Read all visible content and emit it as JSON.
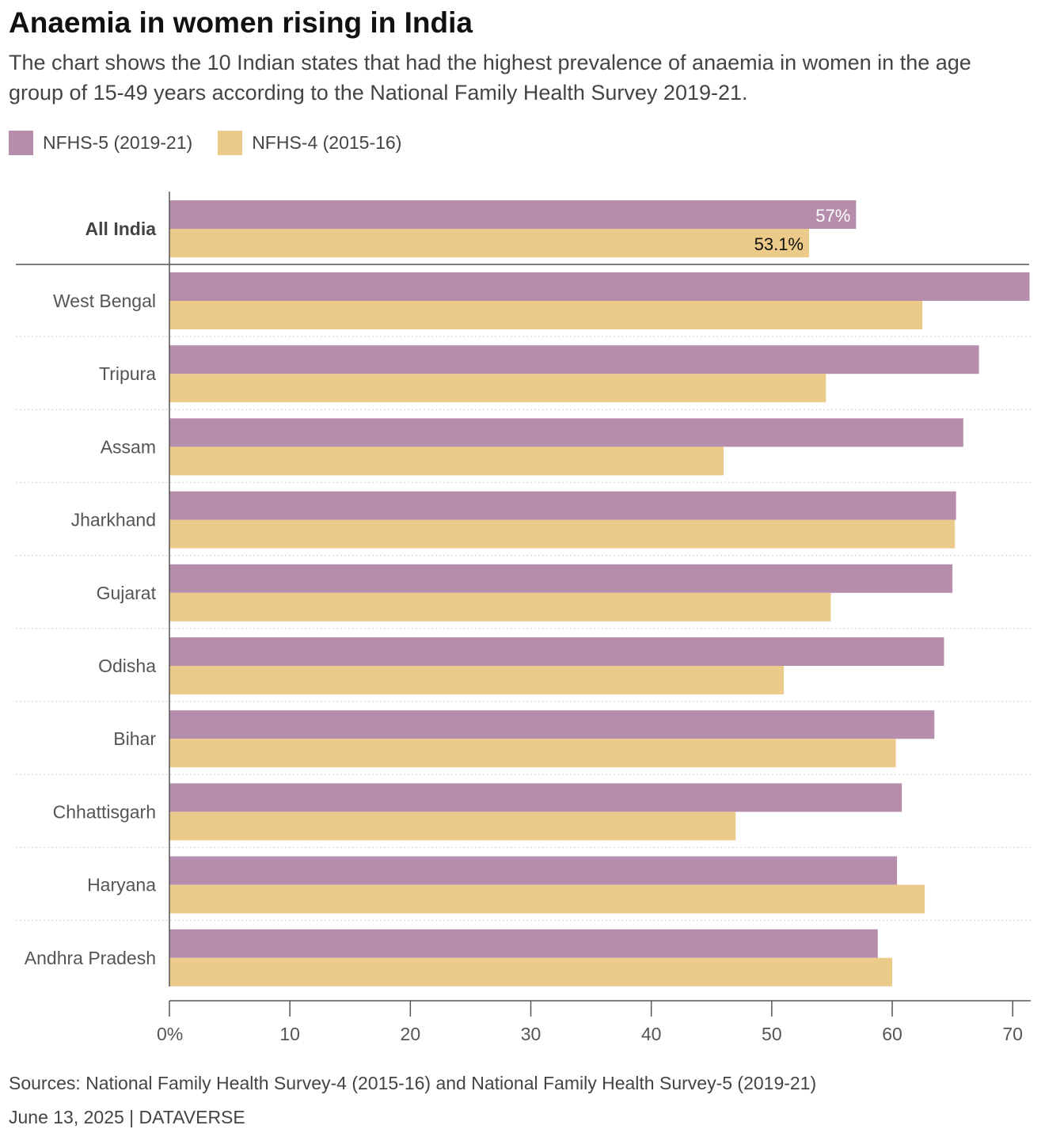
{
  "title": "Anaemia in women rising in India",
  "subtitle": "The chart shows the 10 Indian states that had the highest prevalence of anaemia in women in the age group of 15-49 years according to the National Family Health Survey 2019-21.",
  "legend": [
    {
      "label": "NFHS-5 (2019-21)",
      "color": "#b68dad"
    },
    {
      "label": "NFHS-4 (2015-16)",
      "color": "#ecca8a"
    }
  ],
  "chart_data": {
    "type": "bar",
    "orientation": "horizontal",
    "categories": [
      "All India",
      "West Bengal",
      "Tripura",
      "Assam",
      "Jharkhand",
      "Gujarat",
      "Odisha",
      "Bihar",
      "Chhattisgarh",
      "Haryana",
      "Andhra Pradesh"
    ],
    "highlight_category": "All India",
    "series": [
      {
        "name": "NFHS-5 (2019-21)",
        "color": "#b68dad",
        "values": [
          57.0,
          71.4,
          67.2,
          65.9,
          65.3,
          65.0,
          64.3,
          63.5,
          60.8,
          60.4,
          58.8
        ]
      },
      {
        "name": "NFHS-4 (2015-16)",
        "color": "#ecca8a",
        "values": [
          53.1,
          62.5,
          54.5,
          46.0,
          65.2,
          54.9,
          51.0,
          60.3,
          47.0,
          62.7,
          60.0
        ]
      }
    ],
    "data_labels": {
      "All India": [
        "57%",
        "53.1%"
      ]
    },
    "xlim": [
      0,
      71.5
    ],
    "x_ticks": [
      0,
      10,
      20,
      30,
      40,
      50,
      60,
      70
    ],
    "x_tick_labels": [
      "0%",
      "10",
      "20",
      "30",
      "40",
      "50",
      "60",
      "70"
    ],
    "legend_position": "top-left",
    "grid": false
  },
  "footer": {
    "sources": "Sources: National Family Health Survey-4 (2015-16) and National Family Health Survey-5 (2019-21)",
    "credit": "June 13, 2025 | DATAVERSE"
  }
}
